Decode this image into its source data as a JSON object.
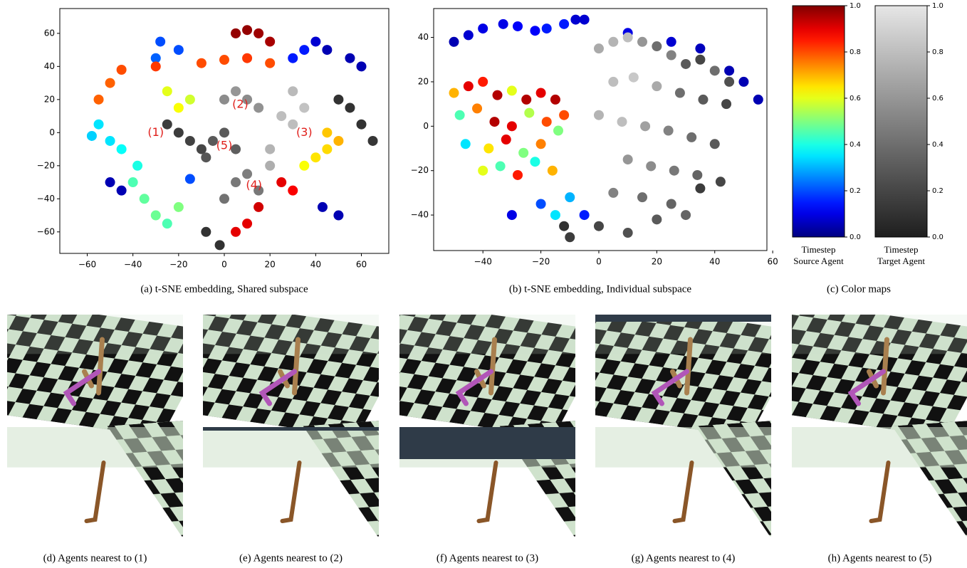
{
  "chart_data": [
    {
      "type": "scatter",
      "caption": "(a) t-SNE embedding, Shared subspace",
      "xlim": [
        -72,
        72
      ],
      "ylim": [
        -73,
        75
      ],
      "xticks": [
        {
          "value": -60,
          "label": "−60"
        },
        {
          "value": -40,
          "label": "−40"
        },
        {
          "value": -20,
          "label": "−20"
        },
        0,
        20,
        40,
        60
      ],
      "yticks": [
        {
          "value": -60,
          "label": "−60"
        },
        {
          "value": -40,
          "label": "−40"
        },
        {
          "value": -20,
          "label": "−20"
        },
        0,
        20,
        40,
        60
      ],
      "series": [
        {
          "colormap": "jet",
          "x": [
            -50,
            -45,
            43,
            50,
            45,
            55,
            60,
            40,
            -28,
            -20,
            -30,
            30,
            35,
            -15,
            -55,
            -50,
            -45,
            -38,
            -58,
            -40,
            -35,
            -30,
            -25,
            -20,
            -25,
            -20,
            -15,
            35,
            40,
            45,
            45,
            50,
            -55,
            -50,
            -45,
            -30,
            -10,
            0,
            10,
            20,
            25,
            30,
            15,
            10,
            5,
            5,
            10,
            15,
            20
          ],
          "y": [
            -30,
            -35,
            -45,
            -50,
            50,
            45,
            40,
            55,
            55,
            50,
            45,
            45,
            50,
            -28,
            5,
            -5,
            -10,
            -20,
            -2,
            -30,
            -40,
            -50,
            -55,
            -45,
            25,
            15,
            20,
            -20,
            -15,
            -10,
            0,
            -5,
            20,
            30,
            38,
            40,
            42,
            44,
            45,
            42,
            -30,
            -35,
            -45,
            -55,
            -60,
            60,
            62,
            60,
            55
          ],
          "t": [
            0.05,
            0.05,
            0.05,
            0.05,
            0.05,
            0.05,
            0.05,
            0.08,
            0.2,
            0.2,
            0.22,
            0.15,
            0.15,
            0.2,
            0.35,
            0.35,
            0.38,
            0.4,
            0.33,
            0.45,
            0.47,
            0.48,
            0.45,
            0.5,
            0.6,
            0.62,
            0.58,
            0.62,
            0.65,
            0.66,
            0.68,
            0.7,
            0.78,
            0.78,
            0.8,
            0.82,
            0.8,
            0.8,
            0.82,
            0.8,
            0.9,
            0.88,
            0.92,
            0.9,
            0.9,
            0.98,
            0.98,
            0.97,
            0.96
          ]
        },
        {
          "colormap": "gray",
          "x": [
            -25,
            -20,
            -15,
            -10,
            0,
            10,
            5,
            15,
            25,
            30,
            35,
            30,
            20,
            20,
            5,
            15,
            0,
            10,
            -5,
            0,
            5,
            -8,
            50,
            55,
            60,
            -8,
            -2,
            65
          ],
          "y": [
            5,
            0,
            -5,
            -10,
            20,
            20,
            25,
            15,
            10,
            5,
            15,
            25,
            -10,
            -20,
            -30,
            -35,
            -40,
            -25,
            -5,
            0,
            -10,
            -15,
            20,
            15,
            5,
            -60,
            -68,
            -5
          ],
          "t": [
            0.15,
            0.15,
            0.18,
            0.2,
            0.55,
            0.55,
            0.6,
            0.58,
            0.8,
            0.8,
            0.82,
            0.78,
            0.75,
            0.72,
            0.45,
            0.45,
            0.42,
            0.48,
            0.3,
            0.3,
            0.32,
            0.28,
            0.1,
            0.1,
            0.1,
            0.1,
            0.1,
            0.12
          ]
        }
      ],
      "annotations": [
        {
          "text": "(1)",
          "x": -30,
          "y": 0
        },
        {
          "text": "(2)",
          "x": 7,
          "y": 17
        },
        {
          "text": "(3)",
          "x": 35,
          "y": 0
        },
        {
          "text": "(4)",
          "x": 13,
          "y": -32
        },
        {
          "text": "(5)",
          "x": 0,
          "y": -8
        }
      ]
    },
    {
      "type": "scatter",
      "caption": "(b) t-SNE embedding, Individual subspace",
      "xlim": [
        -57,
        58
      ],
      "ylim": [
        -56,
        53
      ],
      "xticks": [
        {
          "value": -40,
          "label": "−40"
        },
        {
          "value": -20,
          "label": "−20"
        },
        0,
        20,
        40,
        60
      ],
      "yticks": [
        {
          "value": -40,
          "label": "−40"
        },
        {
          "value": -20,
          "label": "−20"
        },
        0,
        20,
        40
      ],
      "series": [
        {
          "colormap": "jet",
          "x": [
            -50,
            -45,
            -40,
            -33,
            -28,
            -22,
            -18,
            -12,
            -8,
            -5,
            10,
            25,
            35,
            45,
            50,
            55,
            -50,
            -45,
            -40,
            -35,
            -30,
            -25,
            -20,
            -15,
            -12,
            -48,
            -42,
            -36,
            -30,
            -24,
            -18,
            -14,
            -46,
            -38,
            -32,
            -26,
            -20,
            -40,
            -34,
            -28,
            -22,
            -16,
            -20,
            -10,
            -5,
            -15,
            -30
          ],
          "y": [
            38,
            41,
            44,
            46,
            45,
            43,
            44,
            46,
            48,
            48,
            42,
            38,
            35,
            25,
            20,
            12,
            15,
            18,
            20,
            14,
            16,
            12,
            15,
            12,
            5,
            5,
            8,
            2,
            0,
            6,
            2,
            -2,
            -8,
            -10,
            -6,
            -12,
            -8,
            -20,
            -18,
            -22,
            -16,
            -20,
            -35,
            -32,
            -40,
            -40,
            -40
          ],
          "t": [
            0.05,
            0.08,
            0.1,
            0.1,
            0.12,
            0.12,
            0.15,
            0.15,
            0.08,
            0.08,
            0.1,
            0.08,
            0.06,
            0.05,
            0.05,
            0.05,
            0.7,
            0.9,
            0.85,
            0.95,
            0.6,
            0.95,
            0.9,
            0.95,
            0.8,
            0.45,
            0.75,
            0.95,
            0.9,
            0.55,
            0.8,
            0.5,
            0.35,
            0.65,
            0.9,
            0.5,
            0.75,
            0.6,
            0.45,
            0.85,
            0.4,
            0.7,
            0.2,
            0.3,
            0.15,
            0.35,
            0.1
          ]
        },
        {
          "colormap": "gray",
          "x": [
            0,
            5,
            10,
            15,
            20,
            25,
            30,
            35,
            40,
            45,
            5,
            12,
            20,
            28,
            36,
            44,
            0,
            8,
            16,
            24,
            32,
            40,
            10,
            18,
            26,
            34,
            42,
            5,
            15,
            25,
            35,
            0,
            10,
            20,
            30,
            -12,
            -10
          ],
          "y": [
            35,
            38,
            40,
            38,
            36,
            32,
            28,
            30,
            25,
            20,
            20,
            22,
            18,
            15,
            12,
            10,
            5,
            2,
            0,
            -2,
            -5,
            -8,
            -15,
            -18,
            -20,
            -22,
            -25,
            -30,
            -32,
            -35,
            -28,
            -45,
            -48,
            -42,
            -40,
            -45,
            -50
          ],
          "t": [
            0.7,
            0.75,
            0.8,
            0.6,
            0.4,
            0.5,
            0.3,
            0.2,
            0.4,
            0.25,
            0.8,
            0.85,
            0.7,
            0.4,
            0.3,
            0.2,
            0.75,
            0.8,
            0.65,
            0.5,
            0.4,
            0.3,
            0.6,
            0.55,
            0.45,
            0.35,
            0.2,
            0.5,
            0.4,
            0.35,
            0.15,
            0.2,
            0.25,
            0.3,
            0.35,
            0.1,
            0.15
          ]
        }
      ]
    },
    {
      "type": "colorbar",
      "caption": "(c) Color maps",
      "ylim": [
        0,
        1
      ],
      "ticks": [
        {
          "value": 0,
          "label": "0.0"
        },
        {
          "value": 0.2,
          "label": "0.2"
        },
        {
          "value": 0.4,
          "label": "0.4"
        },
        {
          "value": 0.6,
          "label": "0.6"
        },
        {
          "value": 0.8,
          "label": "0.8"
        },
        {
          "value": 1,
          "label": "1.0"
        }
      ],
      "bars": [
        {
          "colormap": "jet",
          "label_lines": [
            "Timestep",
            "Source Agent"
          ]
        },
        {
          "colormap": "gray",
          "label_lines": [
            "Timestep",
            "Target Agent"
          ]
        }
      ]
    }
  ],
  "image_panels": [
    {
      "caption": "(d) Agents nearest to (1)"
    },
    {
      "caption": "(e) Agents nearest to (2)"
    },
    {
      "caption": "(f) Agents nearest to (3)"
    },
    {
      "caption": "(g) Agents nearest to (4)"
    },
    {
      "caption": "(h) Agents nearest to (5)"
    }
  ]
}
